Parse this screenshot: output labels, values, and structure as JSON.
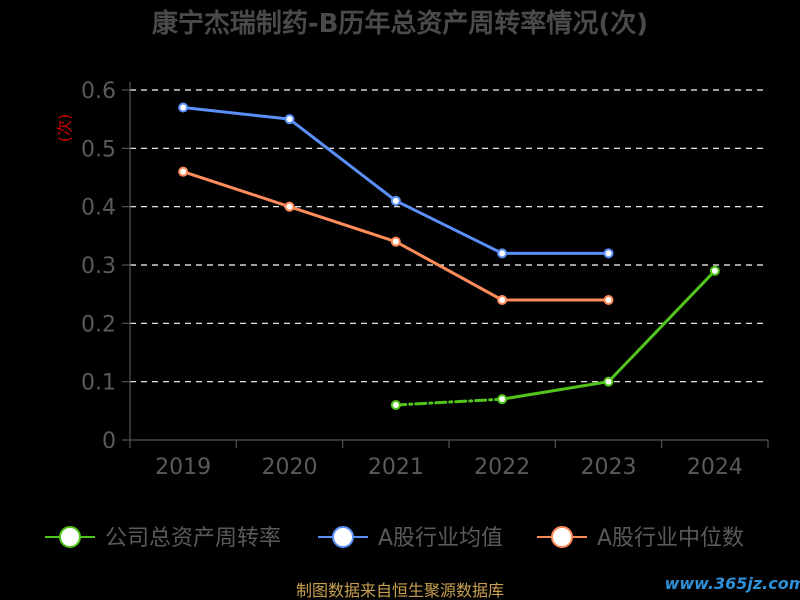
{
  "chart_data": {
    "type": "line",
    "title": "康宁杰瑞制药-B历年总资产周转率情况(次)",
    "ylabel": "(次)",
    "categories": [
      "2019",
      "2020",
      "2021",
      "2022",
      "2023",
      "2024"
    ],
    "ylim": [
      0,
      0.6
    ],
    "yticks": [
      "0",
      "0.1",
      "0.2",
      "0.3",
      "0.4",
      "0.5",
      "0.6"
    ],
    "grid": true,
    "legend_position": "bottom",
    "series": [
      {
        "name": "公司总资产周转率",
        "color": "#52c41a",
        "dashed_first_segment": true,
        "values": [
          null,
          null,
          0.06,
          0.07,
          0.1,
          0.29
        ]
      },
      {
        "name": "A股行业均值",
        "color": "#5b8ff9",
        "values": [
          0.57,
          0.55,
          0.41,
          0.32,
          0.32,
          null
        ]
      },
      {
        "name": "A股行业中位数",
        "color": "#ff8c5a",
        "values": [
          0.46,
          0.4,
          0.34,
          0.24,
          0.24,
          null
        ]
      }
    ]
  },
  "footer": {
    "source": "制图数据来自恒生聚源数据库",
    "watermark": "www.365jz.com"
  }
}
